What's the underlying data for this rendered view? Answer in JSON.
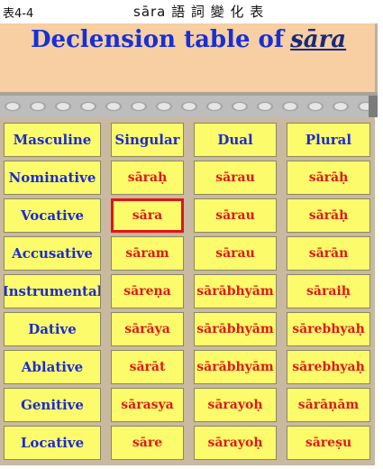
{
  "caption": {
    "code": "表4-4",
    "title": "sāra 語 詞 變 化 表"
  },
  "heading": {
    "prefix": "Declension table of",
    "term": "sāra"
  },
  "colors": {
    "cell_bg": "#fbfb6b",
    "label_text": "#1d2bd0",
    "value_text": "#e01818",
    "highlight_border": "#e31414",
    "heading_bg": "#f7cfa2"
  },
  "table": {
    "headers": [
      "Masculine",
      "Singular",
      "Dual",
      "Plural"
    ],
    "rows": [
      {
        "case": "Nominative",
        "singular": "sāraḥ",
        "dual": "sārau",
        "plural": "sārāḥ"
      },
      {
        "case": "Vocative",
        "singular": "sāra",
        "dual": "sārau",
        "plural": "sārāḥ"
      },
      {
        "case": "Accusative",
        "singular": "sāram",
        "dual": "sārau",
        "plural": "sārān"
      },
      {
        "case": "Instrumental",
        "singular": "sāreṇa",
        "dual": "sārābhyām",
        "plural": "sāraiḥ"
      },
      {
        "case": "Dative",
        "singular": "sārāya",
        "dual": "sārābhyām",
        "plural": "sārebhyaḥ"
      },
      {
        "case": "Ablative",
        "singular": "sārāt",
        "dual": "sārābhyām",
        "plural": "sārebhyaḥ"
      },
      {
        "case": "Genitive",
        "singular": "sārasya",
        "dual": "sārayoḥ",
        "plural": "sārāṇām"
      },
      {
        "case": "Locative",
        "singular": "sāre",
        "dual": "sārayoḥ",
        "plural": "sāreṣu"
      }
    ]
  }
}
